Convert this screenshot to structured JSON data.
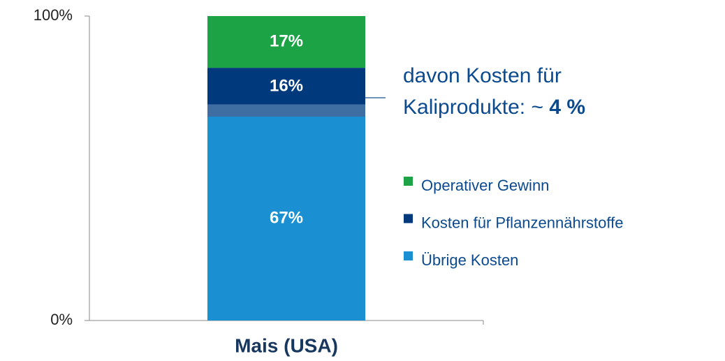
{
  "chart_data": {
    "type": "stacked_bar",
    "categories": [
      "Mais (USA)"
    ],
    "series": [
      {
        "name": "Übrige Kosten",
        "color": "#1a90d2",
        "values": [
          67
        ],
        "value_labels": [
          "67%"
        ]
      },
      {
        "name": "Kosten für Pflanzennährstoffe",
        "color": "#003a7d",
        "values": [
          16
        ],
        "value_labels": [
          "16%"
        ]
      },
      {
        "name": "Operativer Gewinn",
        "color": "#1ba345",
        "values": [
          17
        ],
        "value_labels": [
          "17%"
        ]
      }
    ],
    "ylim": [
      0,
      100
    ],
    "yticks": [
      {
        "value": 0,
        "label": "0%"
      },
      {
        "value": 100,
        "label": "100%"
      }
    ],
    "annotation": {
      "lines": [
        "davon Kosten für",
        "Kaliprodukte: ~"
      ],
      "value": 4,
      "value_label": "4 %",
      "color": "#3f6ea3"
    },
    "legend": "right"
  }
}
